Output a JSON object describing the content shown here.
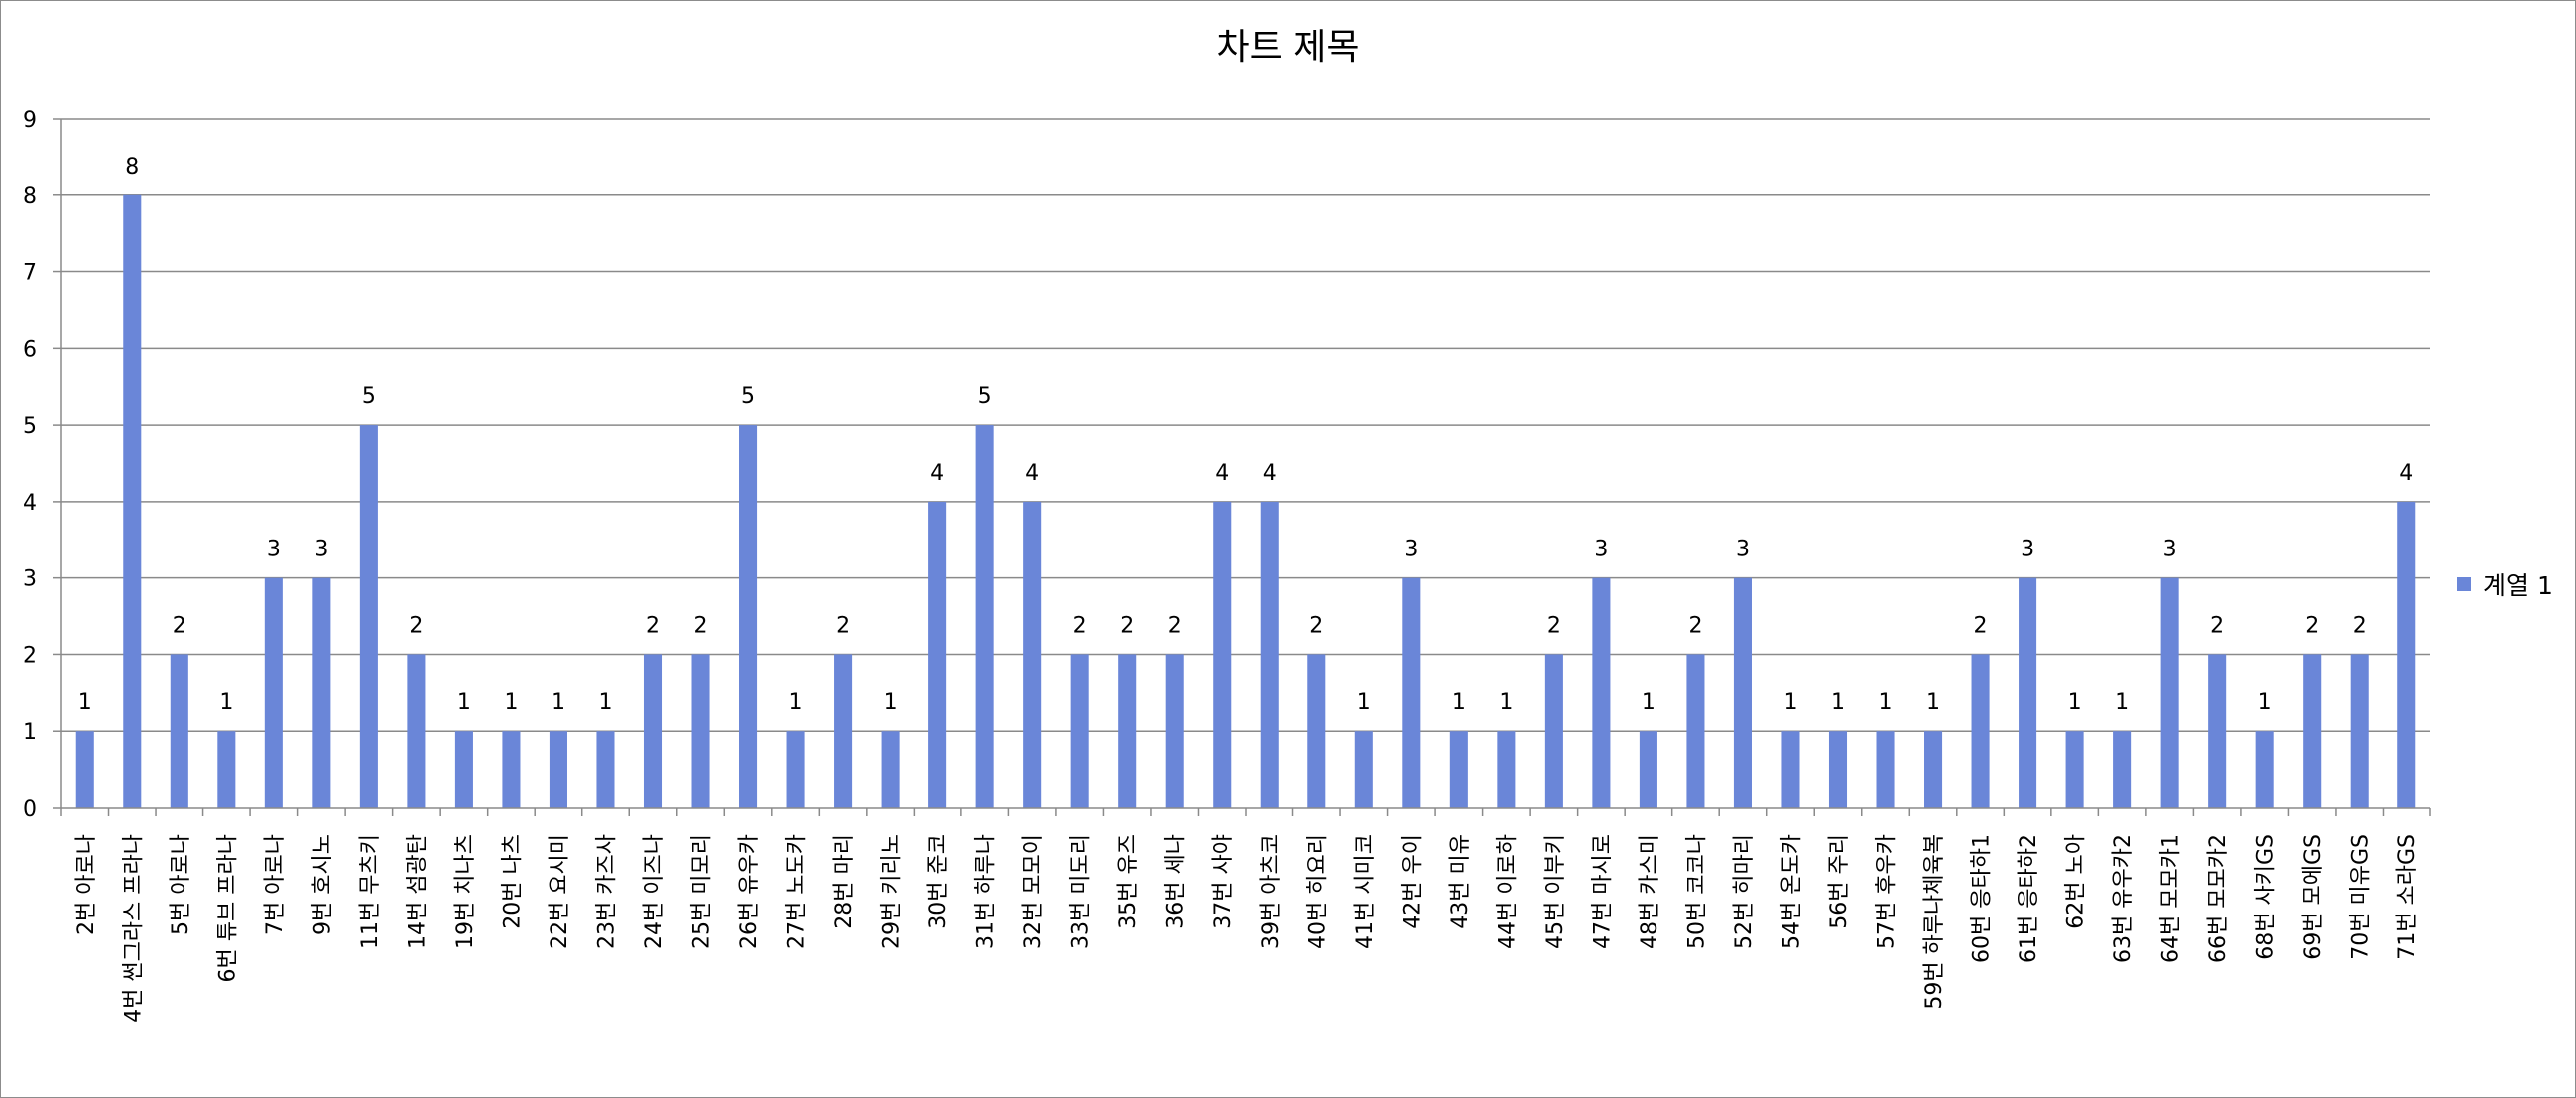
{
  "chart_data": {
    "type": "bar",
    "title": "차트 제목",
    "xlabel": "",
    "ylabel": "",
    "ylim": [
      0,
      9
    ],
    "yticks": [
      0,
      1,
      2,
      3,
      4,
      5,
      6,
      7,
      8,
      9
    ],
    "grid": true,
    "legend_position": "right",
    "bar_color": "#6a86d8",
    "gridline_color": "#8a8a8a",
    "categories": [
      "2번 아로나",
      "4번 썬그라스 프라나",
      "5번 아로나",
      "6번 튜브 프라나",
      "7번 아로나",
      "9번 호시노",
      "11번 무츠키",
      "14번 섬광탄",
      "19번 치나츠",
      "20번 나츠",
      "22번 요시미",
      "23번 카즈사",
      "24번 이즈나",
      "25번 미모리",
      "26번 유우카",
      "27번 노도카",
      "28번 마리",
      "29번 키리노",
      "30번 준코",
      "31번 하루나",
      "32번 모모이",
      "33번 미도리",
      "35번 유즈",
      "36번 세나",
      "37번 사야",
      "39번 아츠코",
      "40번 히요리",
      "41번 시미코",
      "42번 우이",
      "43번 미유",
      "44번 이로하",
      "45번 이부키",
      "47번 마시로",
      "48번 카스미",
      "50번 코코나",
      "52번 히마리",
      "54번 온도카",
      "56번 주리",
      "57번 후우카",
      "59번 하루나체육복",
      "60번 응타하1",
      "61번 응타하2",
      "62번 노아",
      "63번 유우카2",
      "64번 모모카1",
      "66번 모모카2",
      "68번 사키GS",
      "69번 모에GS",
      "70번 미유GS",
      "71번 소라GS"
    ],
    "series": [
      {
        "name": "계열 1",
        "values": [
          1,
          8,
          2,
          1,
          3,
          3,
          5,
          2,
          1,
          1,
          1,
          1,
          2,
          2,
          5,
          1,
          2,
          1,
          4,
          5,
          4,
          2,
          2,
          2,
          4,
          4,
          2,
          1,
          3,
          1,
          1,
          2,
          3,
          1,
          2,
          3,
          1,
          1,
          1,
          1,
          2,
          3,
          1,
          1,
          3,
          2,
          1,
          2,
          2,
          4
        ]
      }
    ]
  }
}
